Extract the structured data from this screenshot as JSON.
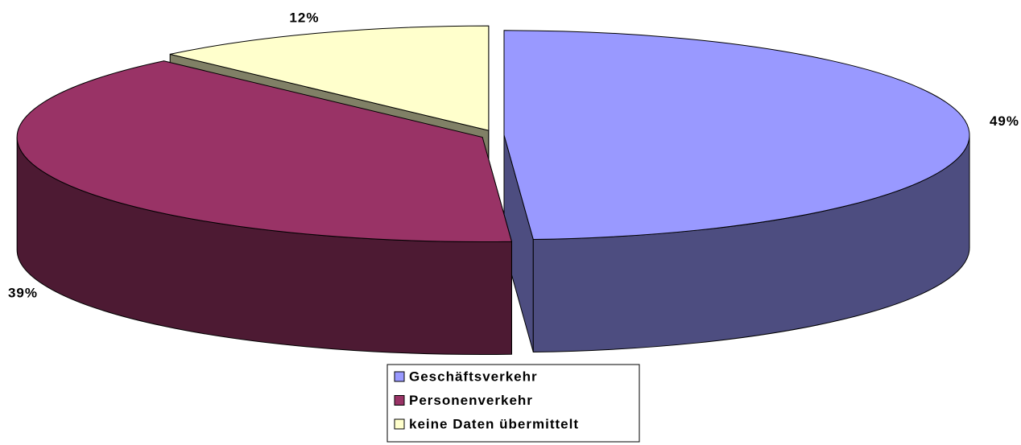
{
  "chart_data": {
    "type": "pie3d",
    "categories": [
      "Geschäftsverkehr",
      "Personenverkehr",
      "keine Daten übermittelt"
    ],
    "values": [
      49,
      39,
      12
    ],
    "value_labels": [
      "49%",
      "39%",
      "12%"
    ],
    "colors": [
      "#9999ff",
      "#993366",
      "#ffffcc"
    ],
    "legend": "bottom"
  }
}
